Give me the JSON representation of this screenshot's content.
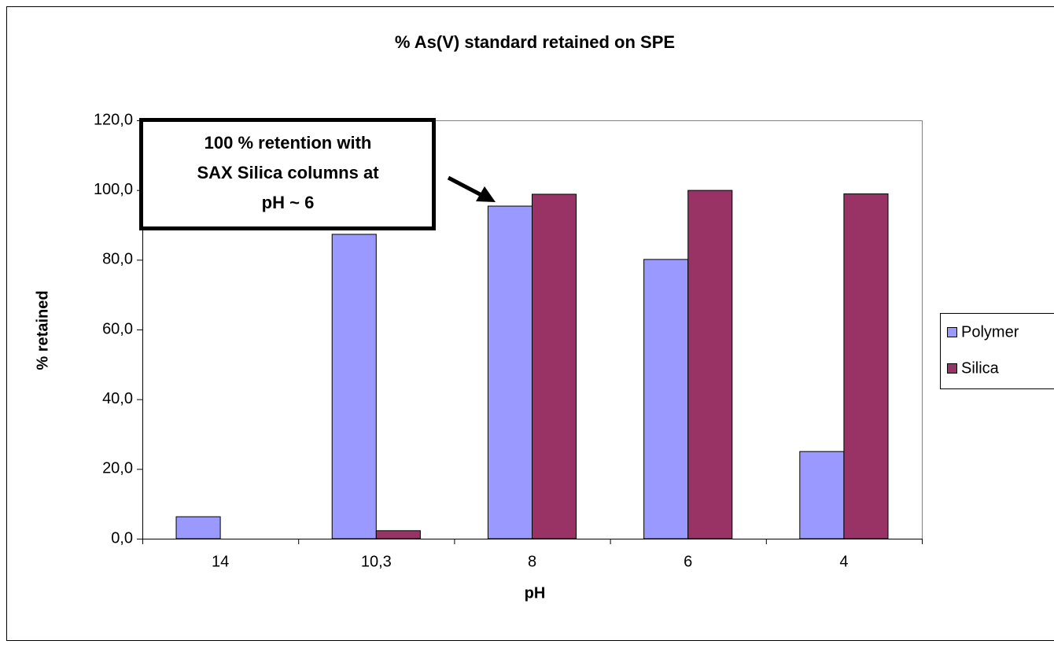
{
  "chart_data": {
    "type": "bar",
    "title": "% As(V) standard retained on SPE",
    "x_label": "pH",
    "y_label": "% retained",
    "categories": [
      "14",
      "10,3",
      "8",
      "6",
      "4"
    ],
    "series": [
      {
        "name": "Polymer",
        "color": "#9999ff",
        "values": [
          6.3,
          87.3,
          95.4,
          80.1,
          25.0
        ]
      },
      {
        "name": "Silica",
        "color": "#993366",
        "values": [
          0,
          2.3,
          98.8,
          99.9,
          98.9
        ]
      }
    ],
    "ylim": [
      0,
      120
    ],
    "yticks": [
      {
        "value": 0,
        "label": "0,0"
      },
      {
        "value": 20,
        "label": "20,0"
      },
      {
        "value": 40,
        "label": "40,0"
      },
      {
        "value": 60,
        "label": "60,0"
      },
      {
        "value": 80,
        "label": "80,0"
      },
      {
        "value": 100,
        "label": "100,0"
      },
      {
        "value": 120,
        "label": "120,0"
      }
    ],
    "legend": "right",
    "annotation": [
      "100 % retention with",
      "SAX Silica columns at",
      "pH ~ 6"
    ]
  }
}
